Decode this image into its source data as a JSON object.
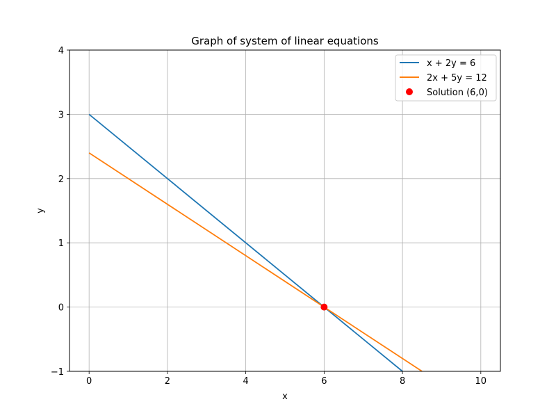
{
  "chart_data": {
    "type": "line",
    "title": "Graph of system of linear equations",
    "xlabel": "x",
    "ylabel": "y",
    "xlim": [
      -0.5,
      10.5
    ],
    "ylim": [
      -1,
      4
    ],
    "xticks": [
      0,
      2,
      4,
      6,
      8,
      10
    ],
    "yticks": [
      -1,
      0,
      1,
      2,
      3,
      4
    ],
    "xtick_labels": [
      "0",
      "2",
      "4",
      "6",
      "8",
      "10"
    ],
    "ytick_labels": [
      "−1",
      "0",
      "1",
      "2",
      "3",
      "4"
    ],
    "grid": true,
    "legend_position": "top-right",
    "series": [
      {
        "name": "x + 2y = 6",
        "color": "#1f77b4",
        "x": [
          0,
          8
        ],
        "y": [
          3,
          -1
        ]
      },
      {
        "name": "2x + 5y = 12",
        "color": "#ff7f0e",
        "x": [
          0,
          8.5
        ],
        "y": [
          2.4,
          -1
        ]
      }
    ],
    "points": [
      {
        "name": "Solution (6,0)",
        "color": "#ff0000",
        "x": 6,
        "y": 0
      }
    ]
  }
}
